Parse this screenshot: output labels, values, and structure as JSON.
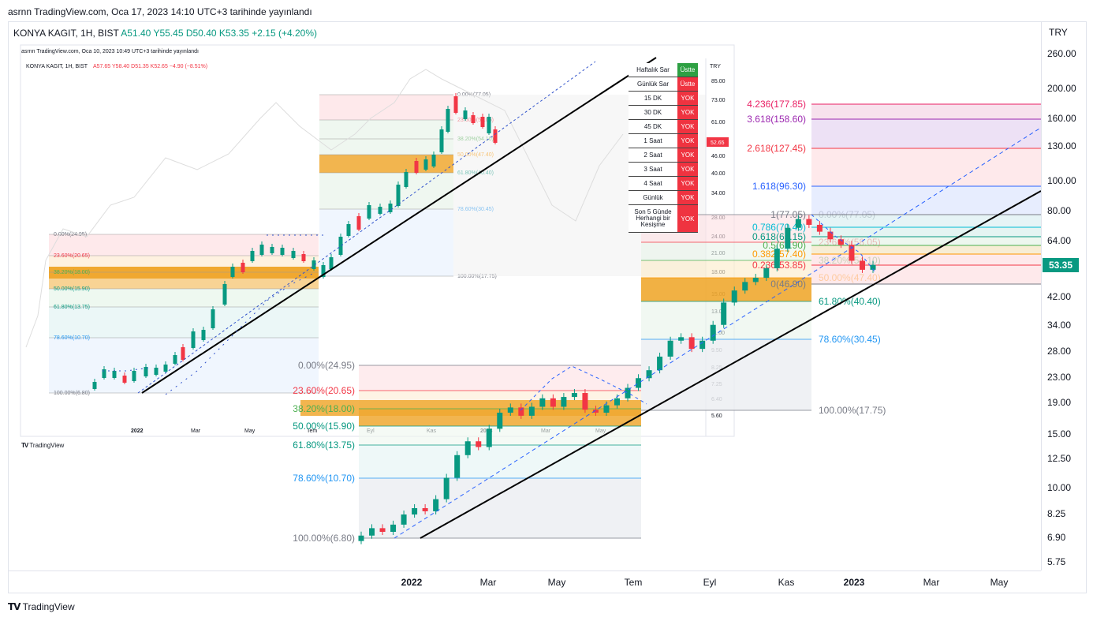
{
  "published": "asrnn TradingView.com, Oca 17, 2023 14:10 UTC+3 tarihinde yayınlandı",
  "symbol": {
    "name": "KONYA KAGIT, 1H, BIST",
    "o": "A51.40",
    "h": "Y55.45",
    "l": "D50.40",
    "c": "K53.35",
    "change": "+2.15 (+4.20%)"
  },
  "currency": "TRY",
  "last_price": "53.35",
  "price_axis": [
    "260.00",
    "200.00",
    "160.00",
    "130.00",
    "100.00",
    "80.00",
    "64.00",
    "53.35",
    "42.00",
    "34.00",
    "28.00",
    "23.00",
    "19.00",
    "15.00",
    "12.50",
    "10.00",
    "8.25",
    "6.90",
    "5.75"
  ],
  "time_axis": [
    {
      "label": "2022",
      "bold": true
    },
    {
      "label": "Mar",
      "bold": false
    },
    {
      "label": "May",
      "bold": false
    },
    {
      "label": "Tem",
      "bold": false
    },
    {
      "label": "Eyl",
      "bold": false
    },
    {
      "label": "Kas",
      "bold": false
    },
    {
      "label": "2023",
      "bold": true
    },
    {
      "label": "Mar",
      "bold": false
    },
    {
      "label": "May",
      "bold": false
    }
  ],
  "fib_main": [
    {
      "label": "4.236(177.85)",
      "color": "#e91e63"
    },
    {
      "label": "3.618(158.60)",
      "color": "#9c27b0"
    },
    {
      "label": "2.618(127.45)",
      "color": "#f23645"
    },
    {
      "label": "1.618(96.30)",
      "color": "#2962ff"
    },
    {
      "label": "1(77.05)",
      "color": "#787b86"
    },
    {
      "label": "0.786(70.40)",
      "color": "#00bcd4"
    },
    {
      "label": "0.618(65.15)",
      "color": "#089981"
    },
    {
      "label": "0.5(61.90)",
      "color": "#4caf50"
    },
    {
      "label": "0.382(57.40)",
      "color": "#ff9800"
    },
    {
      "label": "0.236(53.85)",
      "color": "#f23645"
    },
    {
      "label": "0(46.90)",
      "color": "#787b86"
    }
  ],
  "fib_retrace": [
    {
      "label": "0.00%(77.05)",
      "color": "#787b86"
    },
    {
      "label": "23.60%(58.05)",
      "color": "#f23645"
    },
    {
      "label": "38.20%(54.10)",
      "color": "#4caf50"
    },
    {
      "label": "50.00%(47.40)",
      "color": "#ff9800"
    },
    {
      "label": "61.80%(40.40)",
      "color": "#089981"
    },
    {
      "label": "78.60%(30.45)",
      "color": "#2196f3"
    },
    {
      "label": "100.00%(17.75)",
      "color": "#787b86"
    }
  ],
  "fib_old": [
    {
      "label": "0.00%(24.95)",
      "color": "#787b86"
    },
    {
      "label": "23.60%(20.65)",
      "color": "#f23645"
    },
    {
      "label": "38.20%(18.00)",
      "color": "#4caf50"
    },
    {
      "label": "50.00%(15.90)",
      "color": "#089981"
    },
    {
      "label": "61.80%(13.75)",
      "color": "#089981"
    },
    {
      "label": "78.60%(10.70)",
      "color": "#2196f3"
    },
    {
      "label": "100.00%(6.80)",
      "color": "#787b86"
    }
  ],
  "inset": {
    "published": "asrnn TradingView.com, Oca 10, 2023 10:49 UTC+3 tarihinde yayınlandı",
    "symbol": "KONYA KAGIT, 1H, BIST",
    "ohlc": "A57.65  Y58.40  D51.35  K52.65  −4.90 (−8.51%)",
    "currency": "TRY",
    "last_price": "52.65",
    "price_axis": [
      "85.00",
      "73.00",
      "61.00",
      "46.00",
      "40.00",
      "34.00",
      "28.00",
      "24.00",
      "21.00",
      "18.00",
      "15.00",
      "13.00",
      "11.00",
      "9.50",
      "8.25",
      "7.25",
      "6.40",
      "5.60"
    ],
    "time_axis": [
      "2022",
      "Mar",
      "May",
      "Tem",
      "Eyl",
      "Kas",
      "2023",
      "Mar",
      "May"
    ],
    "fib_old": [
      "0.00%(24.95)",
      "23.60%(20.65)",
      "38.20%(18.00)",
      "50.00%(15.90)",
      "61.80%(13.75)",
      "78.60%(10.70)",
      "100.00%(6.80)"
    ],
    "fib_new": [
      "0.00%(77.05)",
      "23.60%(58.05)",
      "38.20%(54.10)",
      "50.00%(47.40)",
      "61.80%(40.40)",
      "78.60%(30.45)",
      "100.00%(17.75)"
    ],
    "table": [
      {
        "label": "Haftalık Sar",
        "value": "Üstte",
        "status": "ustte"
      },
      {
        "label": "Günlük Sar",
        "value": "Üstte",
        "status": "yok"
      },
      {
        "label": "15 DK",
        "value": "YOK",
        "status": "yok"
      },
      {
        "label": "30 DK",
        "value": "YOK",
        "status": "yok"
      },
      {
        "label": "45 DK",
        "value": "YOK",
        "status": "yok"
      },
      {
        "label": "1 Saat",
        "value": "YOK",
        "status": "yok"
      },
      {
        "label": "2 Saat",
        "value": "YOK",
        "status": "yok"
      },
      {
        "label": "3 Saat",
        "value": "YOK",
        "status": "yok"
      },
      {
        "label": "4 Saat",
        "value": "YOK",
        "status": "yok"
      },
      {
        "label": "Günlük",
        "value": "YOK",
        "status": "yok"
      },
      {
        "label": "Son 5 Günde Herhangi bir Kesişme",
        "value": "YOK",
        "status": "yok"
      }
    ],
    "logo": "TradingView"
  },
  "brand": "TradingView",
  "chart_data": {
    "type": "candlestick",
    "title": "KONYA KAGIT, 1H, BIST",
    "ylabel": "TRY",
    "y_scale": "log",
    "ylim": [
      5.75,
      260
    ],
    "x": [
      "2022",
      "Mar",
      "May",
      "Tem",
      "Eyl",
      "Kas",
      "2023",
      "Mar",
      "May"
    ],
    "series": [
      {
        "name": "KONYA KAGIT",
        "closes_approx": [
          7.0,
          7.4,
          7.2,
          7.6,
          8.2,
          8.6,
          8.4,
          9.2,
          10.8,
          12.8,
          14.2,
          13.6,
          15.6,
          17.6,
          18.3,
          17.2,
          18.4,
          19.6,
          18.4,
          19.8,
          20.4,
          18.0,
          17.6,
          18.6,
          19.6,
          21.2,
          22.8,
          24.2,
          26.8,
          30.2,
          31.0,
          28.4,
          30.2,
          34.0,
          40.2,
          44.0,
          46.9,
          48.4,
          52.0,
          60.2,
          70.4,
          75.2,
          72.0,
          68.4,
          64.6,
          62.0,
          55.0,
          51.4,
          53.35
        ]
      }
    ],
    "grid": false,
    "legend": "none"
  }
}
